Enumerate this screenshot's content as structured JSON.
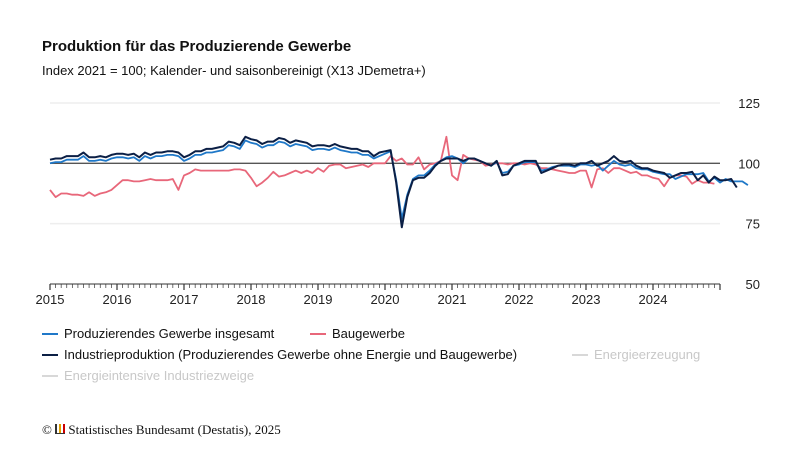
{
  "chart_data": {
    "type": "line",
    "title": "Produktion für das Produzierende Gewerbe",
    "subtitle": "Index 2021 = 100; Kalender- und saisonbereinigt (X13 JDemetra+)",
    "x_start": "2015-01",
    "x_end": "2024-12",
    "frequency": "monthly",
    "x_tick_labels": [
      "2015",
      "2016",
      "2017",
      "2018",
      "2019",
      "2020",
      "2021",
      "2022",
      "2023",
      "2024"
    ],
    "ylim": [
      50,
      125
    ],
    "y_ticks": [
      50,
      75,
      100,
      125
    ],
    "y_axis_side": "right",
    "reference_line": 100,
    "grid": true,
    "legend_placement": "bottom",
    "series": [
      {
        "name": "Produzierendes Gewerbe insgesamt",
        "color": "#1f78c8",
        "enabled": true,
        "values": [
          100,
          100.5,
          100.5,
          101.5,
          101.5,
          101.5,
          103,
          101,
          101,
          101.5,
          101,
          102,
          102.5,
          102.5,
          102,
          102.5,
          101,
          103,
          102,
          103,
          103,
          103.5,
          103.5,
          103,
          101,
          102,
          103.5,
          103.5,
          104.5,
          104.5,
          105,
          105.5,
          107.5,
          107,
          106,
          109.5,
          108.5,
          108,
          106.5,
          107.5,
          107.5,
          109,
          108.5,
          107,
          108,
          107.5,
          107,
          105.5,
          106,
          106,
          105.5,
          106.5,
          105.5,
          105,
          104.5,
          104.5,
          103.5,
          103.5,
          102,
          103,
          104,
          105,
          93,
          77,
          87,
          93.5,
          95,
          95,
          97,
          99.5,
          101,
          102.5,
          103,
          102,
          100,
          102,
          102,
          101,
          100,
          99,
          100.5,
          96,
          96.5,
          99,
          99.5,
          100.5,
          100.5,
          100.5,
          97,
          97.5,
          98.5,
          99,
          99,
          99,
          98.5,
          99.5,
          99.5,
          99,
          99.5,
          97,
          99,
          101,
          99.5,
          99,
          99.5,
          98,
          97.5,
          97.5,
          96.5,
          96,
          95.5,
          95.5,
          93.5,
          94.5,
          95.5,
          95.5,
          95.5,
          96,
          92.5,
          94,
          92,
          93.5,
          92.5,
          92.5,
          92.5,
          91
        ]
      },
      {
        "name": "Baugewerbe",
        "color": "#e8677a",
        "enabled": true,
        "values": [
          89,
          86,
          87.5,
          87.5,
          87,
          87,
          86.5,
          88,
          86.5,
          87.5,
          88,
          89,
          91,
          93,
          93,
          92.5,
          92.5,
          93,
          93.5,
          93,
          93,
          93,
          93.5,
          89,
          95,
          96,
          97.5,
          97,
          97,
          97,
          97,
          97,
          97,
          97.5,
          97.5,
          97,
          94,
          90.5,
          92,
          94,
          96.5,
          94.5,
          95,
          96,
          97,
          96,
          97,
          96,
          98,
          96.5,
          99,
          99.5,
          99.5,
          98,
          98.5,
          99,
          99.5,
          98.5,
          100,
          100,
          100,
          103,
          101,
          102,
          99.5,
          99.5,
          102.5,
          97.5,
          99.5,
          100,
          101,
          111,
          95,
          93,
          103.5,
          102,
          101.5,
          101,
          99,
          99.5,
          100,
          100,
          99.5,
          100,
          100,
          99.5,
          100,
          99.5,
          98,
          98,
          97.5,
          97,
          96.5,
          96,
          96,
          97,
          97,
          90,
          97.5,
          98,
          96,
          98,
          98,
          97,
          96,
          96.5,
          95,
          95,
          94,
          93.5,
          90.5,
          94,
          95,
          95,
          94.5,
          91.5,
          93,
          92,
          92,
          91.5
        ]
      },
      {
        "name": "Industrieproduktion (Produzierendes Gewerbe ohne Energie und Baugewerbe)",
        "color": "#0b1f45",
        "enabled": true,
        "values": [
          101.5,
          102,
          102,
          103,
          103,
          103,
          104.5,
          102.5,
          102.5,
          103,
          102.5,
          103.5,
          104,
          104,
          103.5,
          104,
          102.5,
          104.5,
          103.5,
          104.5,
          104.5,
          105,
          105,
          104.5,
          102.5,
          103.5,
          105,
          105,
          106,
          106,
          106.5,
          107,
          109,
          108.5,
          107.5,
          111,
          110,
          109.5,
          108,
          109,
          109,
          110.5,
          110,
          108.5,
          109.5,
          109,
          108.5,
          107,
          107.5,
          107.5,
          107,
          108,
          107,
          106.5,
          106,
          106,
          105,
          105,
          103,
          104.5,
          105,
          105.5,
          92,
          73.5,
          86,
          93,
          94,
          94,
          96,
          99,
          101,
          102,
          102,
          102,
          101,
          102,
          102,
          101,
          100,
          99,
          101,
          95,
          95.5,
          99,
          100,
          101,
          101,
          101,
          96,
          97,
          98,
          99,
          99.5,
          99.5,
          99,
          100,
          100,
          101,
          99,
          100,
          101,
          103,
          101,
          100.5,
          101,
          99,
          98,
          98,
          97,
          96.5,
          96,
          94,
          95,
          96,
          96,
          96.5,
          93,
          95,
          92,
          94.5,
          93,
          93,
          93.5,
          90
        ]
      },
      {
        "name": "Energieerzeugung",
        "color": "#c8c8c8",
        "enabled": false
      },
      {
        "name": "Energieintensive Industriezweige",
        "color": "#c8c8c8",
        "enabled": false
      }
    ]
  },
  "footer": {
    "copyright_symbol": "©",
    "source": "Statistisches Bundesamt (Destatis), 2025"
  }
}
